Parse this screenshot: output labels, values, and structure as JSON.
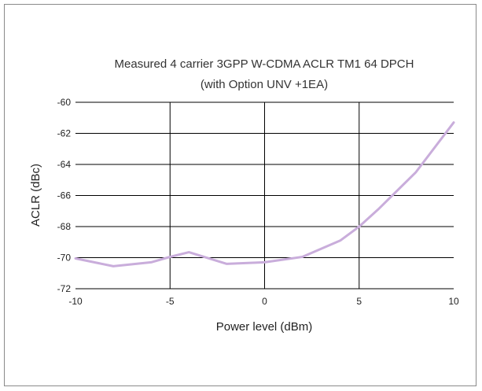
{
  "chart_data": {
    "type": "line",
    "title_line1": "Measured 4 carrier 3GPP W-CDMA ACLR TM1 64 DPCH",
    "title_line2": "(with Option UNV +1EA)",
    "xlabel": "Power level (dBm)",
    "ylabel": "ACLR (dBc)",
    "xlim": [
      -10,
      10
    ],
    "ylim": [
      -72,
      -60
    ],
    "xticks": [
      -10,
      -5,
      0,
      5,
      10
    ],
    "yticks": [
      -60,
      -62,
      -64,
      -66,
      -68,
      -70,
      -72
    ],
    "grid": true,
    "line_color": "#c9addb",
    "series": [
      {
        "x": [
          -10,
          -8,
          -6,
          -5,
          -4,
          -2,
          0,
          2,
          4,
          5,
          6,
          8,
          10
        ],
        "y": [
          -70.05,
          -70.55,
          -70.3,
          -69.95,
          -69.65,
          -70.4,
          -70.3,
          -69.95,
          -68.9,
          -68.0,
          -66.9,
          -64.5,
          -61.3
        ]
      }
    ]
  }
}
